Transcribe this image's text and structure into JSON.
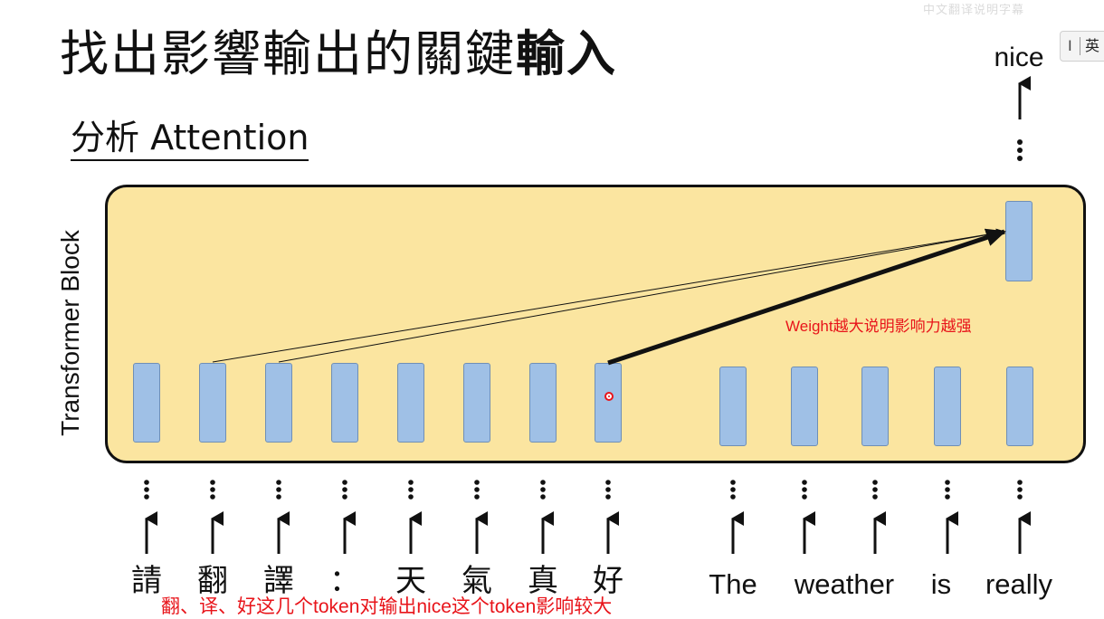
{
  "title": {
    "main": "找出影響輸出的關鍵",
    "bold": "輸入"
  },
  "subtitle": "分析 Attention",
  "ime": {
    "cursor_glyph": "I",
    "lang": "英"
  },
  "watermark": "中文翻译说明字幕",
  "diagram": {
    "block_label": "Transformer Block",
    "output_token": "nice",
    "input_tokens": [
      {
        "text": "請",
        "lang": "zh"
      },
      {
        "text": "翻",
        "lang": "zh"
      },
      {
        "text": "譯",
        "lang": "zh"
      },
      {
        "text": "：",
        "lang": "zh"
      },
      {
        "text": "天",
        "lang": "zh"
      },
      {
        "text": "氣",
        "lang": "zh"
      },
      {
        "text": "真",
        "lang": "zh"
      },
      {
        "text": "好",
        "lang": "zh"
      },
      {
        "text": "The",
        "lang": "en"
      },
      {
        "text": "weather",
        "lang": "en"
      },
      {
        "text": "is",
        "lang": "en"
      },
      {
        "text": "really",
        "lang": "en"
      }
    ],
    "attention_links": [
      {
        "from_index": 1,
        "weight": "low"
      },
      {
        "from_index": 2,
        "weight": "low"
      },
      {
        "from_index": 7,
        "weight": "high"
      }
    ],
    "annotation_weight": "Weight越大说明影响力越强",
    "annotation_bottom": "翻、译、好这几个token对输出nice这个token影响较大",
    "colors": {
      "block_fill": "#fbe5a0",
      "vector_fill": "#9fc0e6",
      "annotation": "#e8141a"
    }
  }
}
